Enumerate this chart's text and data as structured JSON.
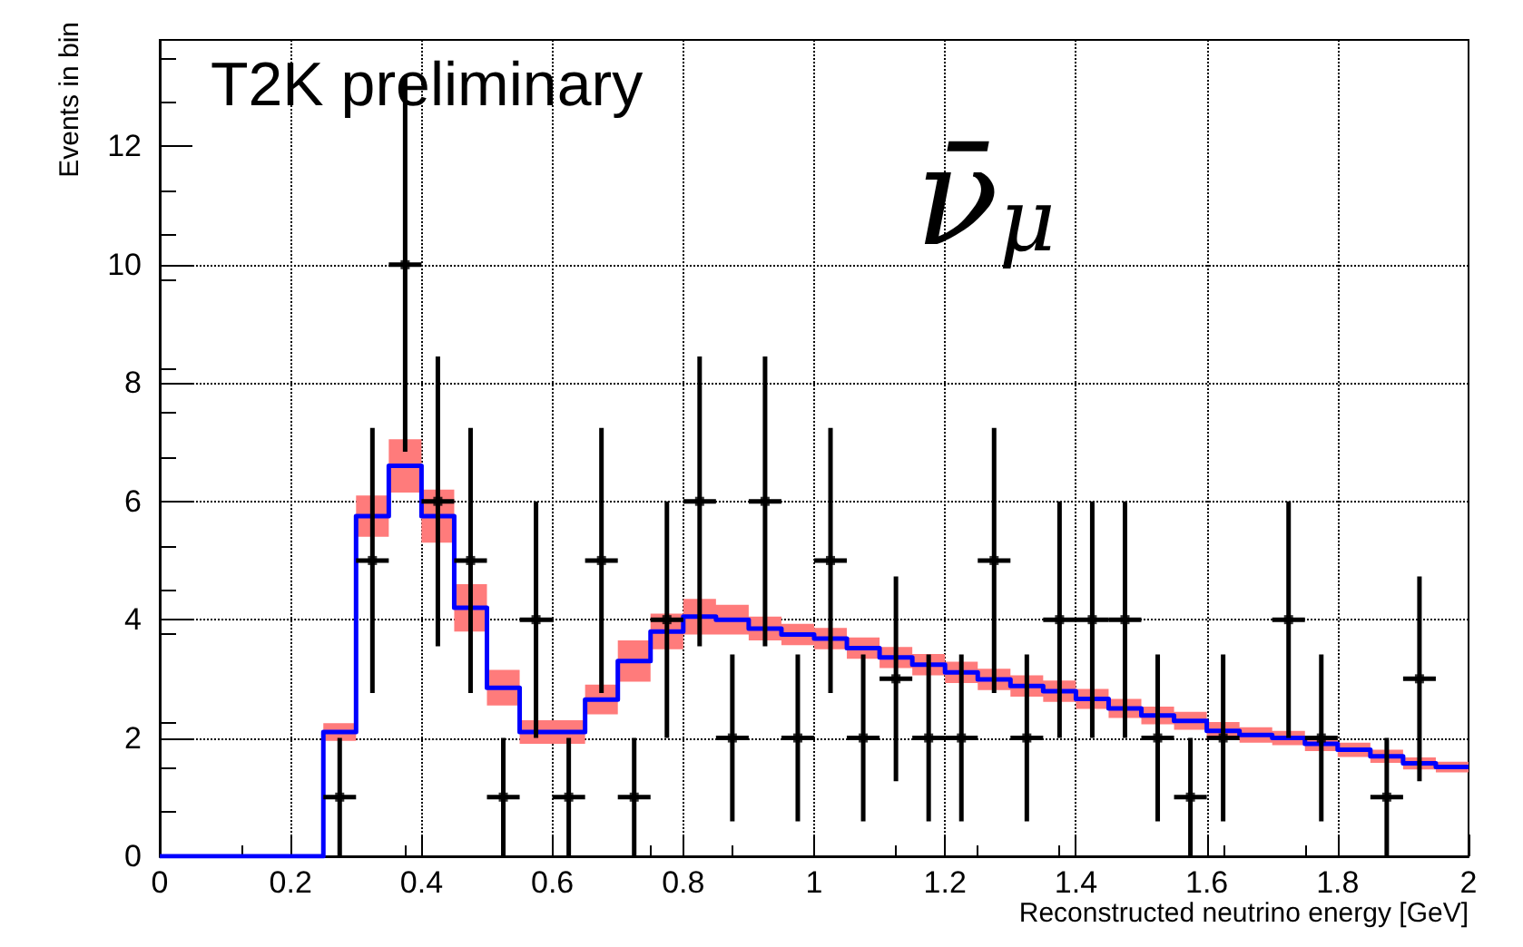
{
  "chart_data": {
    "type": "step",
    "xlabel": "Reconstructed neutrino energy [GeV]",
    "ylabel": "Events in bin",
    "annotations": [
      "T2K preliminary",
      "ν̄$_{μ}$"
    ],
    "series": [
      {
        "color": "#0000ff",
        "x": [
          0,
          0.05,
          0.1,
          0.15,
          0.2,
          0.25,
          0.3,
          0.35,
          0.4,
          0.45,
          0.5,
          0.55,
          0.6,
          0.65,
          0.7,
          0.75,
          0.8,
          0.85,
          0.9,
          0.95,
          1,
          1.05,
          1.1,
          1.15,
          1.2,
          1.25,
          1.3,
          1.35,
          1.4,
          1.45,
          1.5,
          1.55,
          1.6,
          1.65,
          1.7,
          1.75,
          1.8,
          1.85,
          1.9,
          1.95,
          2
        ],
        "values": [
          0,
          0,
          0,
          0,
          0,
          2.1,
          5.75,
          6.6,
          5.75,
          4.2,
          2.85,
          2.1,
          2.1,
          2.65,
          3.3,
          3.8,
          4.05,
          4.0,
          3.85,
          3.75,
          3.68,
          3.52,
          3.36,
          3.24,
          3.11,
          2.99,
          2.88,
          2.79,
          2.66,
          2.5,
          2.38,
          2.29,
          2.12,
          2.05,
          2.0,
          1.9,
          1.8,
          1.69,
          1.57,
          1.51,
          1.51
        ],
        "lower": [
          0,
          0,
          0,
          0,
          0,
          1.95,
          5.4,
          6.15,
          5.3,
          3.8,
          2.55,
          1.9,
          1.9,
          2.4,
          2.95,
          3.5,
          3.75,
          3.75,
          3.65,
          3.57,
          3.5,
          3.34,
          3.18,
          3.06,
          2.93,
          2.81,
          2.7,
          2.61,
          2.49,
          2.34,
          2.23,
          2.14,
          1.97,
          1.92,
          1.88,
          1.78,
          1.68,
          1.58,
          1.47,
          1.42,
          1.42
        ],
        "upper": [
          0,
          0,
          0,
          0,
          0,
          2.25,
          6.1,
          7.05,
          6.2,
          4.6,
          3.15,
          2.3,
          2.3,
          2.9,
          3.65,
          4.1,
          4.35,
          4.25,
          4.05,
          3.93,
          3.86,
          3.7,
          3.54,
          3.42,
          3.29,
          3.17,
          3.06,
          2.97,
          2.83,
          2.66,
          2.53,
          2.44,
          2.27,
          2.18,
          2.12,
          2.02,
          1.92,
          1.8,
          1.67,
          1.6,
          1.6
        ]
      },
      {
        "type": "scatter",
        "color": "#000000",
        "marker": "square",
        "x": [
          0.275,
          0.325,
          0.375,
          0.425,
          0.475,
          0.525,
          0.575,
          0.625,
          0.675,
          0.725,
          0.775,
          0.825,
          0.875,
          0.925,
          0.975,
          1.025,
          1.075,
          1.125,
          1.175,
          1.225,
          1.275,
          1.325,
          1.375,
          1.425,
          1.475,
          1.525,
          1.575,
          1.625,
          1.725,
          1.775,
          1.875,
          1.925
        ],
        "values": [
          1,
          5,
          10,
          6,
          5,
          1,
          4,
          1,
          5,
          1,
          4,
          6,
          2,
          6,
          2,
          5,
          2,
          3,
          2,
          2,
          5,
          2,
          4,
          4,
          4,
          2,
          1,
          2,
          4,
          2,
          1,
          3
        ],
        "errors": [
          1,
          2.24,
          3.16,
          2.45,
          2.24,
          1,
          2,
          1,
          2.24,
          1,
          2,
          2.45,
          1.41,
          2.45,
          1.41,
          2.24,
          1.41,
          1.73,
          1.41,
          1.41,
          2.24,
          1.41,
          2,
          2,
          2,
          1.41,
          1,
          1.41,
          2,
          1.41,
          1,
          1.73
        ],
        "xerrors": [
          0.025,
          0.025,
          0.025,
          0.025,
          0.025,
          0.025,
          0.025,
          0.025,
          0.025,
          0.025,
          0.025,
          0.025,
          0.025,
          0.025,
          0.025,
          0.025,
          0.025,
          0.025,
          0.025,
          0.025,
          0.025,
          0.025,
          0.025,
          0.025,
          0.025,
          0.025,
          0.025,
          0.025,
          0.025,
          0.025,
          0.025,
          0.025
        ]
      }
    ],
    "xlim": [
      0,
      2
    ],
    "ylim": [
      0,
      13.8
    ],
    "xticks": [
      0,
      0.2,
      0.4,
      0.6,
      0.8,
      1,
      1.2,
      1.4,
      1.6,
      1.8,
      2
    ],
    "yticks": [
      0,
      2,
      4,
      6,
      8,
      10,
      12
    ],
    "grid": true,
    "marker": "none"
  }
}
